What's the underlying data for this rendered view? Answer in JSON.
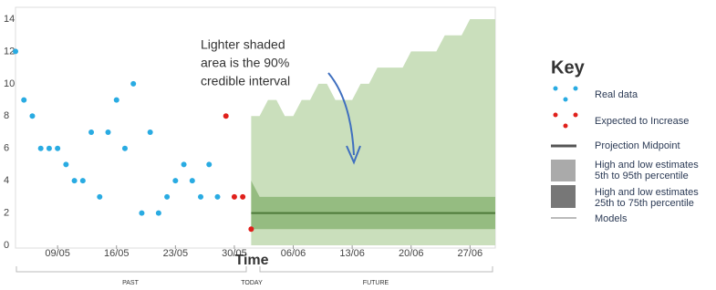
{
  "chart_data": {
    "type": "projection",
    "xlabel": "Time",
    "annotation": [
      "Lighter shaded",
      "area is the 90%",
      "credible interval"
    ],
    "key_title": "Key",
    "timeline": [
      "PAST",
      "TODAY",
      "FUTURE"
    ],
    "xlim": [
      "04/05",
      "30/06"
    ],
    "xticks": [
      "09/05",
      "16/05",
      "23/05",
      "30/05",
      "06/06",
      "13/06",
      "20/06",
      "27/06"
    ],
    "ylim": [
      0,
      14
    ],
    "yticks": [
      0,
      2,
      4,
      6,
      8,
      10,
      12,
      14
    ],
    "grid": false,
    "bands": [
      {
        "name": [
          "High and low estimates",
          "5th to 95th percentile"
        ],
        "color": "#c4dbb5",
        "x": [
          "01/06",
          "02/06",
          "03/06",
          "04/06",
          "05/06",
          "06/06",
          "07/06",
          "08/06",
          "09/06",
          "10/06",
          "11/06",
          "12/06",
          "13/06",
          "14/06",
          "15/06",
          "16/06",
          "17/06",
          "18/06",
          "19/06",
          "20/06",
          "21/06",
          "22/06",
          "23/06",
          "24/06",
          "25/06",
          "26/06",
          "27/06",
          "28/06",
          "29/06",
          "30/06"
        ],
        "low": [
          0,
          0,
          0,
          0,
          0,
          0,
          0,
          0,
          0,
          0,
          0,
          0,
          0,
          0,
          0,
          0,
          0,
          0,
          0,
          0,
          0,
          0,
          0,
          0,
          0,
          0,
          0,
          0,
          0,
          0
        ],
        "high": [
          8,
          8,
          9,
          9,
          8,
          8,
          9,
          9,
          10,
          10,
          9,
          9,
          9,
          10,
          10,
          11,
          11,
          11,
          11,
          12,
          12,
          12,
          12,
          13,
          13,
          13,
          14,
          14,
          14,
          14
        ]
      },
      {
        "name": [
          "High and low estimates",
          "25th to 75th percentile"
        ],
        "color": "#8fb87a",
        "x": [
          "01/06",
          "02/06",
          "03/06",
          "04/06",
          "05/06",
          "06/06",
          "07/06",
          "08/06",
          "09/06",
          "10/06",
          "11/06",
          "12/06",
          "13/06",
          "14/06",
          "15/06",
          "16/06",
          "17/06",
          "18/06",
          "19/06",
          "20/06",
          "21/06",
          "22/06",
          "23/06",
          "24/06",
          "25/06",
          "26/06",
          "27/06",
          "28/06",
          "29/06",
          "30/06"
        ],
        "low": [
          1,
          1,
          1,
          1,
          1,
          1,
          1,
          1,
          1,
          1,
          1,
          1,
          1,
          1,
          1,
          1,
          1,
          1,
          1,
          1,
          1,
          1,
          1,
          1,
          1,
          1,
          1,
          1,
          1,
          1
        ],
        "high": [
          4,
          3,
          3,
          3,
          3,
          3,
          3,
          3,
          3,
          3,
          3,
          3,
          3,
          3,
          3,
          3,
          3,
          3,
          3,
          3,
          3,
          3,
          3,
          3,
          3,
          3,
          3,
          3,
          3,
          3
        ]
      }
    ],
    "series": [
      {
        "name": "Real data",
        "color": "#29abe2",
        "style": "dots",
        "x": [
          "04/05",
          "05/05",
          "06/05",
          "07/05",
          "08/05",
          "09/05",
          "10/05",
          "11/05",
          "12/05",
          "13/05",
          "14/05",
          "15/05",
          "16/05",
          "17/05",
          "18/05",
          "19/05",
          "20/05",
          "21/05",
          "22/05",
          "23/05",
          "24/05",
          "25/05",
          "26/05",
          "27/05",
          "28/05"
        ],
        "values": [
          12,
          9,
          8,
          6,
          6,
          6,
          5,
          4,
          4,
          7,
          3,
          7,
          9,
          6,
          10,
          2,
          7,
          2,
          3,
          4,
          5,
          4,
          3,
          5,
          3
        ]
      },
      {
        "name": "Expected to Increase",
        "color": "#e0201b",
        "style": "dots",
        "x": [
          "29/05",
          "30/05",
          "31/05",
          "01/06"
        ],
        "values": [
          8,
          3,
          3,
          1
        ]
      },
      {
        "name": "Projection Midpoint",
        "color": "#4d7a3a",
        "style": "line",
        "x": [
          "01/06",
          "02/06",
          "03/06",
          "04/06",
          "05/06",
          "06/06",
          "07/06",
          "08/06",
          "09/06",
          "10/06",
          "11/06",
          "12/06",
          "13/06",
          "14/06",
          "15/06",
          "16/06",
          "17/06",
          "18/06",
          "19/06",
          "20/06",
          "21/06",
          "22/06",
          "23/06",
          "24/06",
          "25/06",
          "26/06",
          "27/06",
          "28/06",
          "29/06",
          "30/06"
        ],
        "values": [
          2,
          2,
          2,
          2,
          2,
          2,
          2,
          2,
          2,
          2,
          2,
          2,
          2,
          2,
          2,
          2,
          2,
          2,
          2,
          2,
          2,
          2,
          2,
          2,
          2,
          2,
          2,
          2,
          2,
          2
        ]
      }
    ],
    "models_label": "Models"
  }
}
